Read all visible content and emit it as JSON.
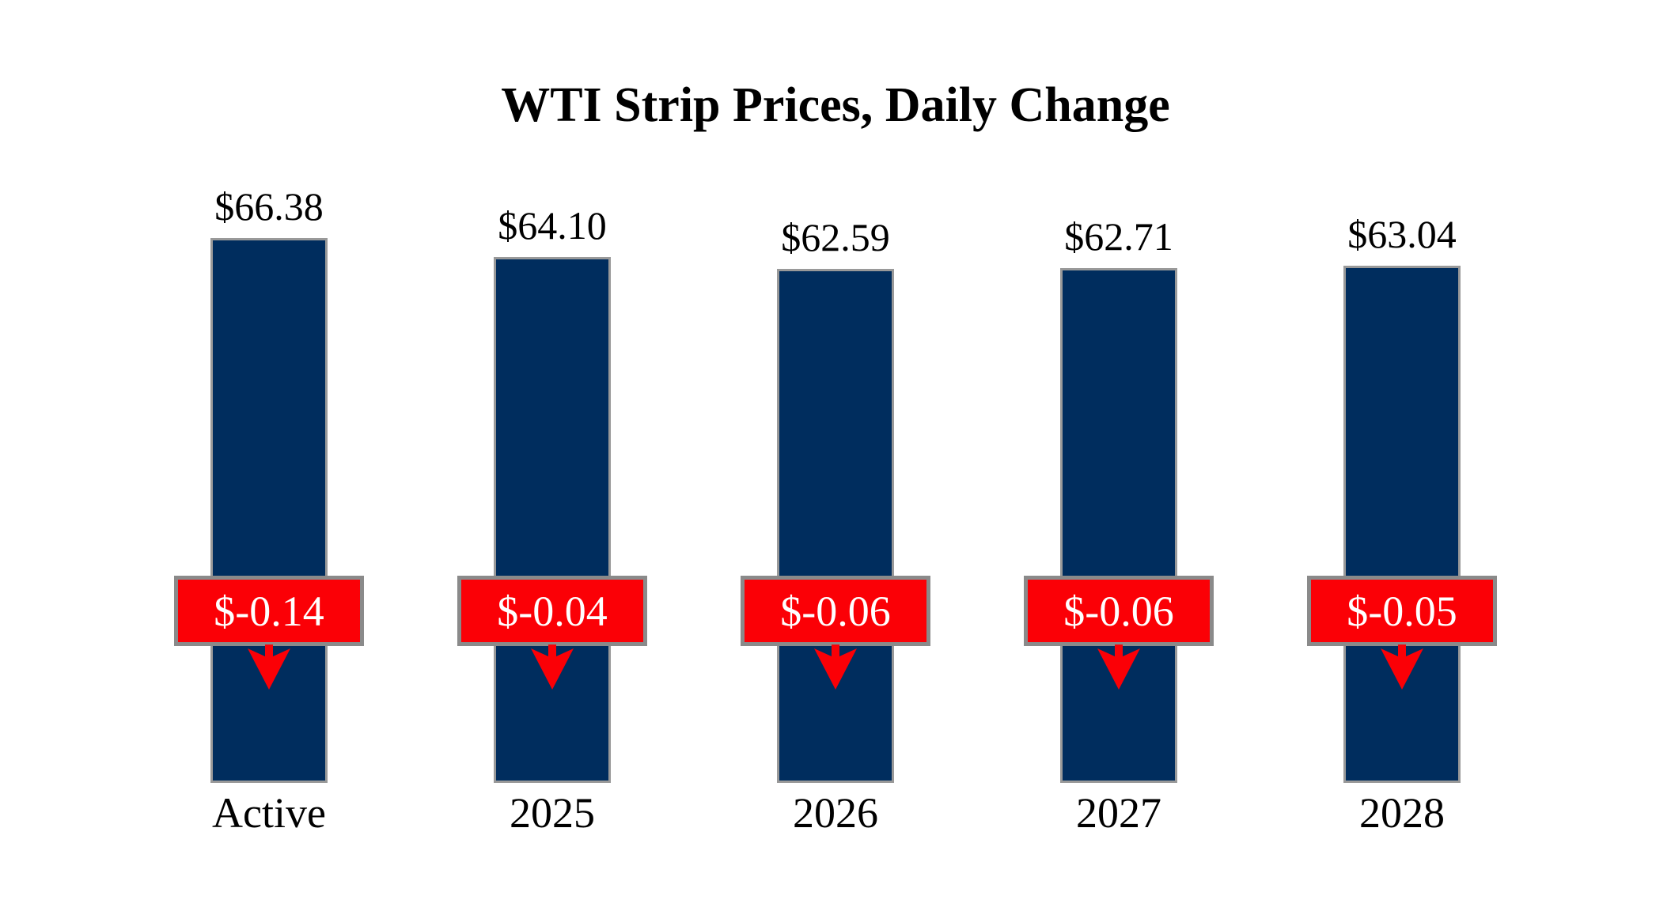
{
  "chart_data": {
    "type": "bar",
    "title": "WTI Strip Prices, Daily Change",
    "xlabel": "",
    "ylabel": "",
    "categories": [
      "Active",
      "2025",
      "2026",
      "2027",
      "2028"
    ],
    "values": [
      66.38,
      64.1,
      62.59,
      62.71,
      63.04
    ],
    "changes": [
      -0.14,
      -0.04,
      -0.06,
      -0.06,
      -0.05
    ],
    "ylim": [
      0,
      70
    ],
    "grid": false,
    "legend": "none",
    "bars": [
      {
        "category": "Active",
        "value": 66.38,
        "price_label": "$66.38",
        "change": -0.14,
        "change_label": "$-0.14"
      },
      {
        "category": "2025",
        "value": 64.1,
        "price_label": "$64.10",
        "change": -0.04,
        "change_label": "$-0.04"
      },
      {
        "category": "2026",
        "value": 62.59,
        "price_label": "$62.59",
        "change": -0.06,
        "change_label": "$-0.06"
      },
      {
        "category": "2027",
        "value": 62.71,
        "price_label": "$62.71",
        "change": -0.06,
        "change_label": "$-0.06"
      },
      {
        "category": "2028",
        "value": 63.04,
        "price_label": "$63.04",
        "change": -0.05,
        "change_label": "$-0.05"
      }
    ],
    "colors": {
      "bar_fill": "#002D5E",
      "bar_border": "#999999",
      "change_fill": "#FB0006",
      "change_border": "#8A8A8A",
      "change_text": "#FFFFFF",
      "arrow": "#FB0006",
      "label_text": "#000000",
      "background": "#FFFFFF"
    }
  }
}
